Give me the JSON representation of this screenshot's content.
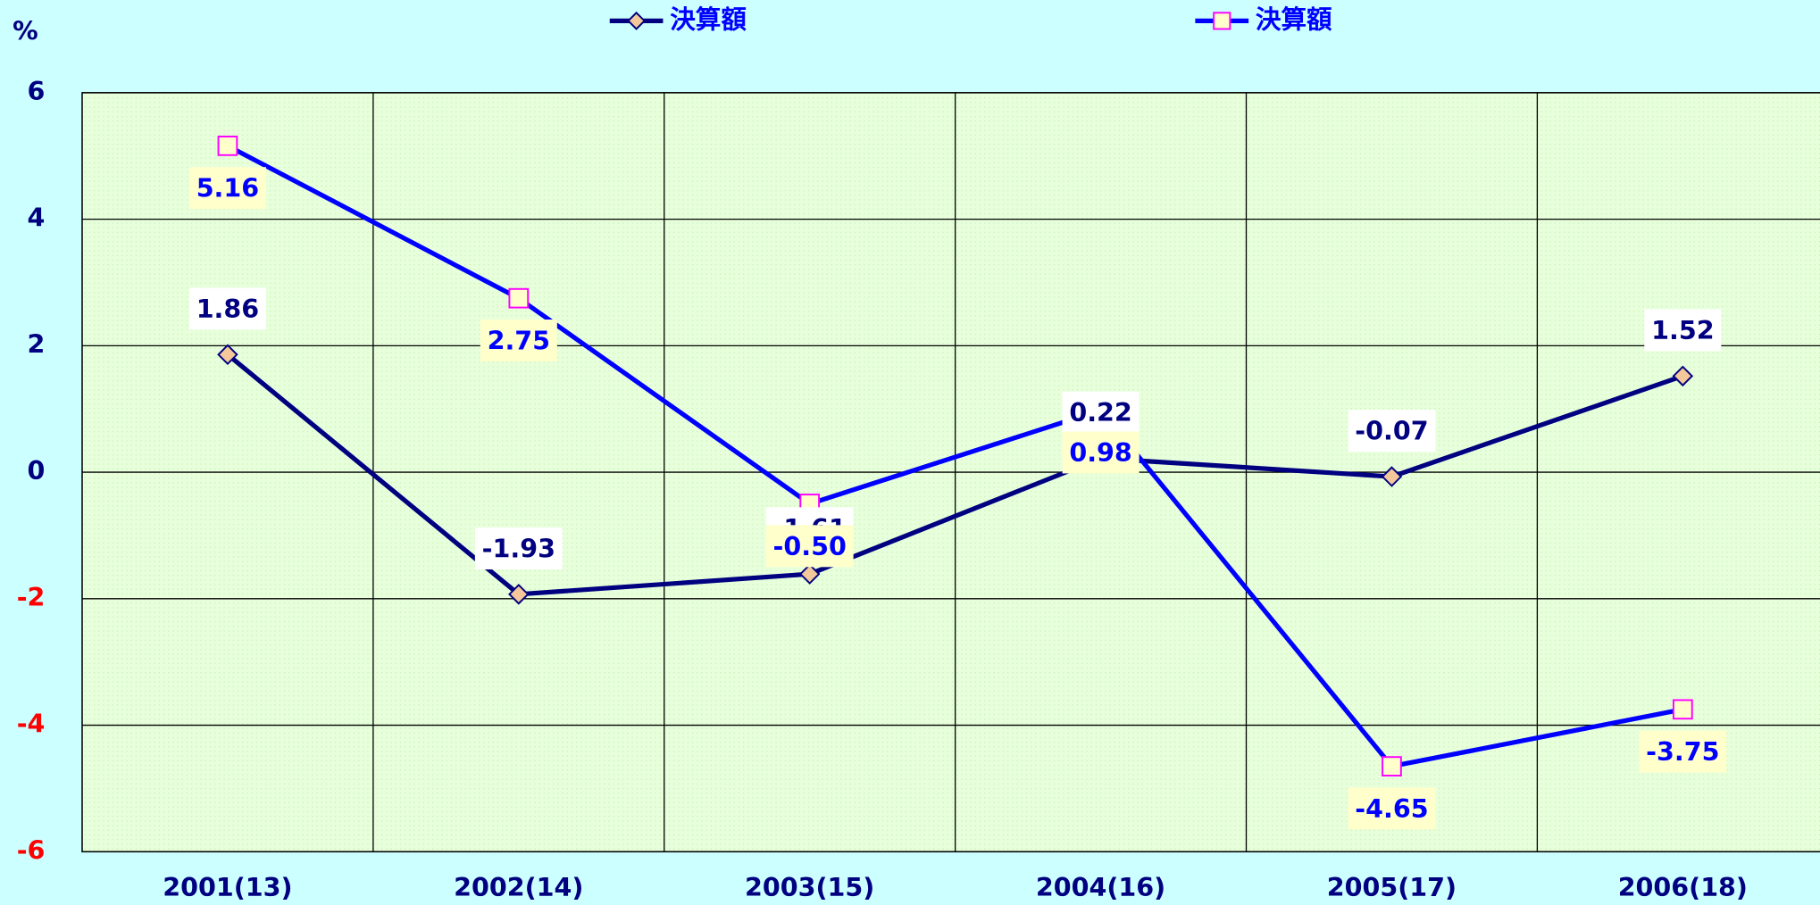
{
  "chart_data": {
    "type": "line",
    "y_label": "%",
    "categories": [
      "2001(13)",
      "2002(14)",
      "2003(15)",
      "2004(16)",
      "2005(17)",
      "2006(18)"
    ],
    "series": [
      {
        "name": "決算額",
        "color": "#000080",
        "marker": "diamond",
        "marker_fill": "#f4c89a",
        "values": [
          1.86,
          -1.93,
          -1.61,
          0.22,
          -0.07,
          1.52
        ],
        "value_labels": [
          "1.86",
          "-1.93",
          "-1.61",
          "0.22",
          "-0.07",
          "1.52"
        ]
      },
      {
        "name": "決算額",
        "color": "#0000ff",
        "marker": "square",
        "marker_fill": "#ffffcc",
        "values": [
          5.16,
          2.75,
          -0.5,
          0.98,
          -4.65,
          -3.75
        ],
        "value_labels": [
          "5.16",
          "2.75",
          "-0.50",
          "0.98",
          "-4.65",
          "-3.75"
        ]
      }
    ],
    "ylim": [
      -6,
      6
    ],
    "yticks": [
      -6,
      -4,
      -2,
      0,
      2,
      4,
      6
    ],
    "grid": true
  }
}
